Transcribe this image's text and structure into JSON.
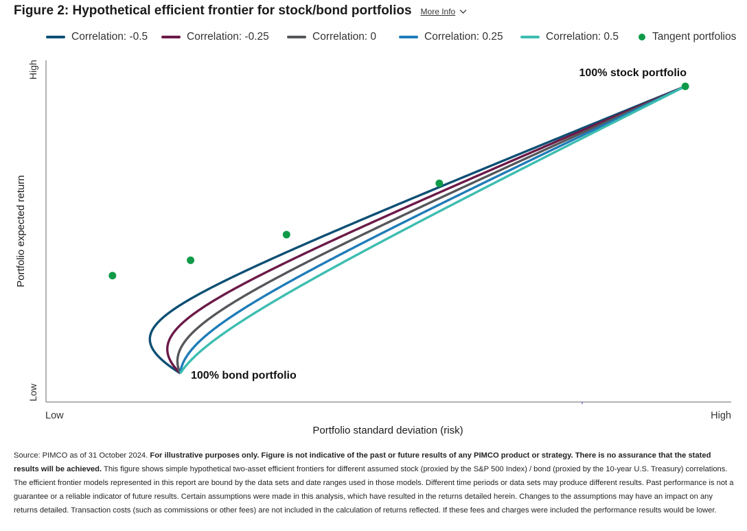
{
  "header": {
    "title": "Figure 2: Hypothetical efficient frontier for stock/bond portfolios",
    "more_info": "More Info"
  },
  "colors": {
    "corr_m05": "#0e4f74",
    "corr_m025": "#6b1a48",
    "corr_0": "#55575b",
    "corr_025": "#1f7cb8",
    "corr_05": "#3cbdb0",
    "tangent": "#0e9a48"
  },
  "chart_data": {
    "type": "line",
    "title": "Hypothetical efficient frontier for stock/bond portfolios",
    "xlabel": "Portfolio standard deviation (risk)",
    "ylabel": "Portfolio expected return",
    "x_tick_labels": [
      "Low",
      "High"
    ],
    "y_tick_labels": [
      "Low",
      "High"
    ],
    "stock_risk": 0.933,
    "stock_return": 0.924,
    "bond_risk": 0.196,
    "bond_return": 0.084,
    "series": [
      {
        "name": "Correlation: -0.5",
        "correlation": -0.5,
        "color_key": "corr_m05"
      },
      {
        "name": "Correlation: -0.25",
        "correlation": -0.25,
        "color_key": "corr_m025"
      },
      {
        "name": "Correlation: 0",
        "correlation": 0,
        "color_key": "corr_0"
      },
      {
        "name": "Correlation: 0.25",
        "correlation": 0.25,
        "color_key": "corr_025"
      },
      {
        "name": "Correlation: 0.5",
        "correlation": 0.5,
        "color_key": "corr_05"
      }
    ],
    "tangent_portfolios": {
      "name": "Tangent portfolios",
      "points": [
        {
          "x": 0.097,
          "y": 0.37
        },
        {
          "x": 0.211,
          "y": 0.415
        },
        {
          "x": 0.351,
          "y": 0.49
        },
        {
          "x": 0.574,
          "y": 0.64
        },
        {
          "x": 0.933,
          "y": 0.924
        }
      ]
    },
    "annotations": [
      {
        "text": "100% stock portfolio",
        "anchor": "stock"
      },
      {
        "text": "100% bond portfolio",
        "anchor": "bond"
      }
    ],
    "grid": false,
    "legend_position": "top"
  },
  "footnote": {
    "source": "Source: PIMCO as of 31 October 2024. ",
    "bold": "For illustrative purposes only. Figure is not indicative of the past or future results of any PIMCO product or strategy. There is no assurance that the stated results will be achieved.",
    "body": " This figure shows simple hypothetical two-asset efficient frontiers for different assumed stock (proxied by the S&P 500 Index) / bond (proxied by the 10-year U.S. Treasury) correlations. The efficient frontier models represented in this report are bound by the data sets and date ranges used in those models. Different time periods or data sets may produce different results. Past performance is not a guarantee or a reliable indicator of future results. Certain assumptions were made in this analysis, which have resulted in the returns detailed herein. Changes to the assumptions may have an impact on any returns detailed. Transaction costs (such as commissions or other fees) are not included in the calculation of returns reflected. If these fees and charges were included the performance results would be lower."
  }
}
